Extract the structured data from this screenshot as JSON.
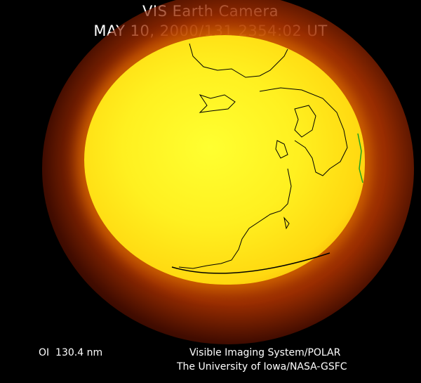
{
  "header": {
    "title": "VIS Earth Camera",
    "timestamp": "MAY 10, 2000/131 2354:02 UT"
  },
  "footer": {
    "filter": "OI  130.4 nm",
    "instrument": "Visible Imaging System/POLAR",
    "institution": "The University of Iowa/NASA-GSFC"
  },
  "colors": {
    "background": "#000000",
    "disk_core": "#ffff30",
    "disk_edge": "#f0a000",
    "halo": "#aa3200",
    "coastline": "#000000",
    "terminator_line": "#20a020"
  }
}
